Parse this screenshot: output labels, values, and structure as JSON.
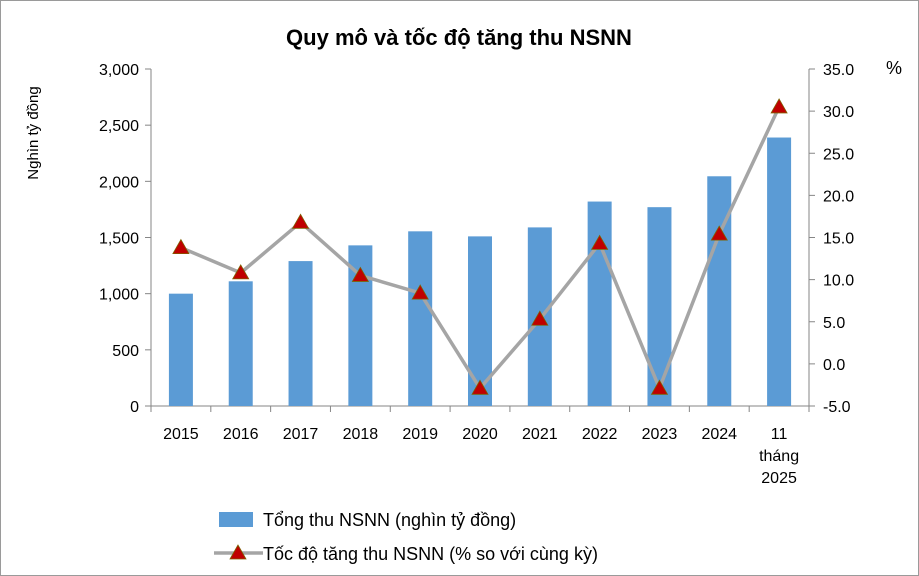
{
  "chart_data": {
    "type": "bar+line",
    "title": "Quy mô và tốc độ tăng thu NSNN",
    "ylabel_left": "Nghìn tỷ đồng",
    "ylabel_right": "%",
    "categories": [
      "2015",
      "2016",
      "2017",
      "2018",
      "2019",
      "2020",
      "2021",
      "2022",
      "2023",
      "2024",
      "11\ntháng\n2025"
    ],
    "left_axis": {
      "ylim": [
        0,
        3000
      ],
      "ticks": [
        0,
        500,
        1000,
        1500,
        2000,
        2500,
        3000
      ],
      "tick_labels": [
        "0",
        "500",
        "1,000",
        "1,500",
        "2,000",
        "2,500",
        "3,000"
      ]
    },
    "right_axis": {
      "ylim": [
        -5,
        35
      ],
      "ticks": [
        -5,
        0,
        5,
        10,
        15,
        20,
        25,
        30,
        35
      ],
      "tick_labels": [
        "-5.0",
        "0.0",
        "5.0",
        "10.0",
        "15.0",
        "20.0",
        "25.0",
        "30.0",
        "35.0"
      ]
    },
    "series": [
      {
        "name": "Tổng thu NSNN (nghìn tỷ đồng)",
        "kind": "bar",
        "axis": "left",
        "color": "#5b9bd5",
        "values": [
          1000,
          1110,
          1290,
          1430,
          1555,
          1510,
          1590,
          1820,
          1770,
          2045,
          2390
        ]
      },
      {
        "name": "Tốc độ tăng thu NSNN (% so với cùng kỳ)",
        "kind": "line",
        "axis": "right",
        "color": "#a5a5a5",
        "marker_color": "#c00000",
        "values": [
          13.8,
          10.8,
          16.8,
          10.5,
          8.4,
          -2.9,
          5.3,
          14.3,
          -2.9,
          15.4,
          30.5
        ]
      }
    ],
    "legend_position": "bottom",
    "grid": false
  }
}
